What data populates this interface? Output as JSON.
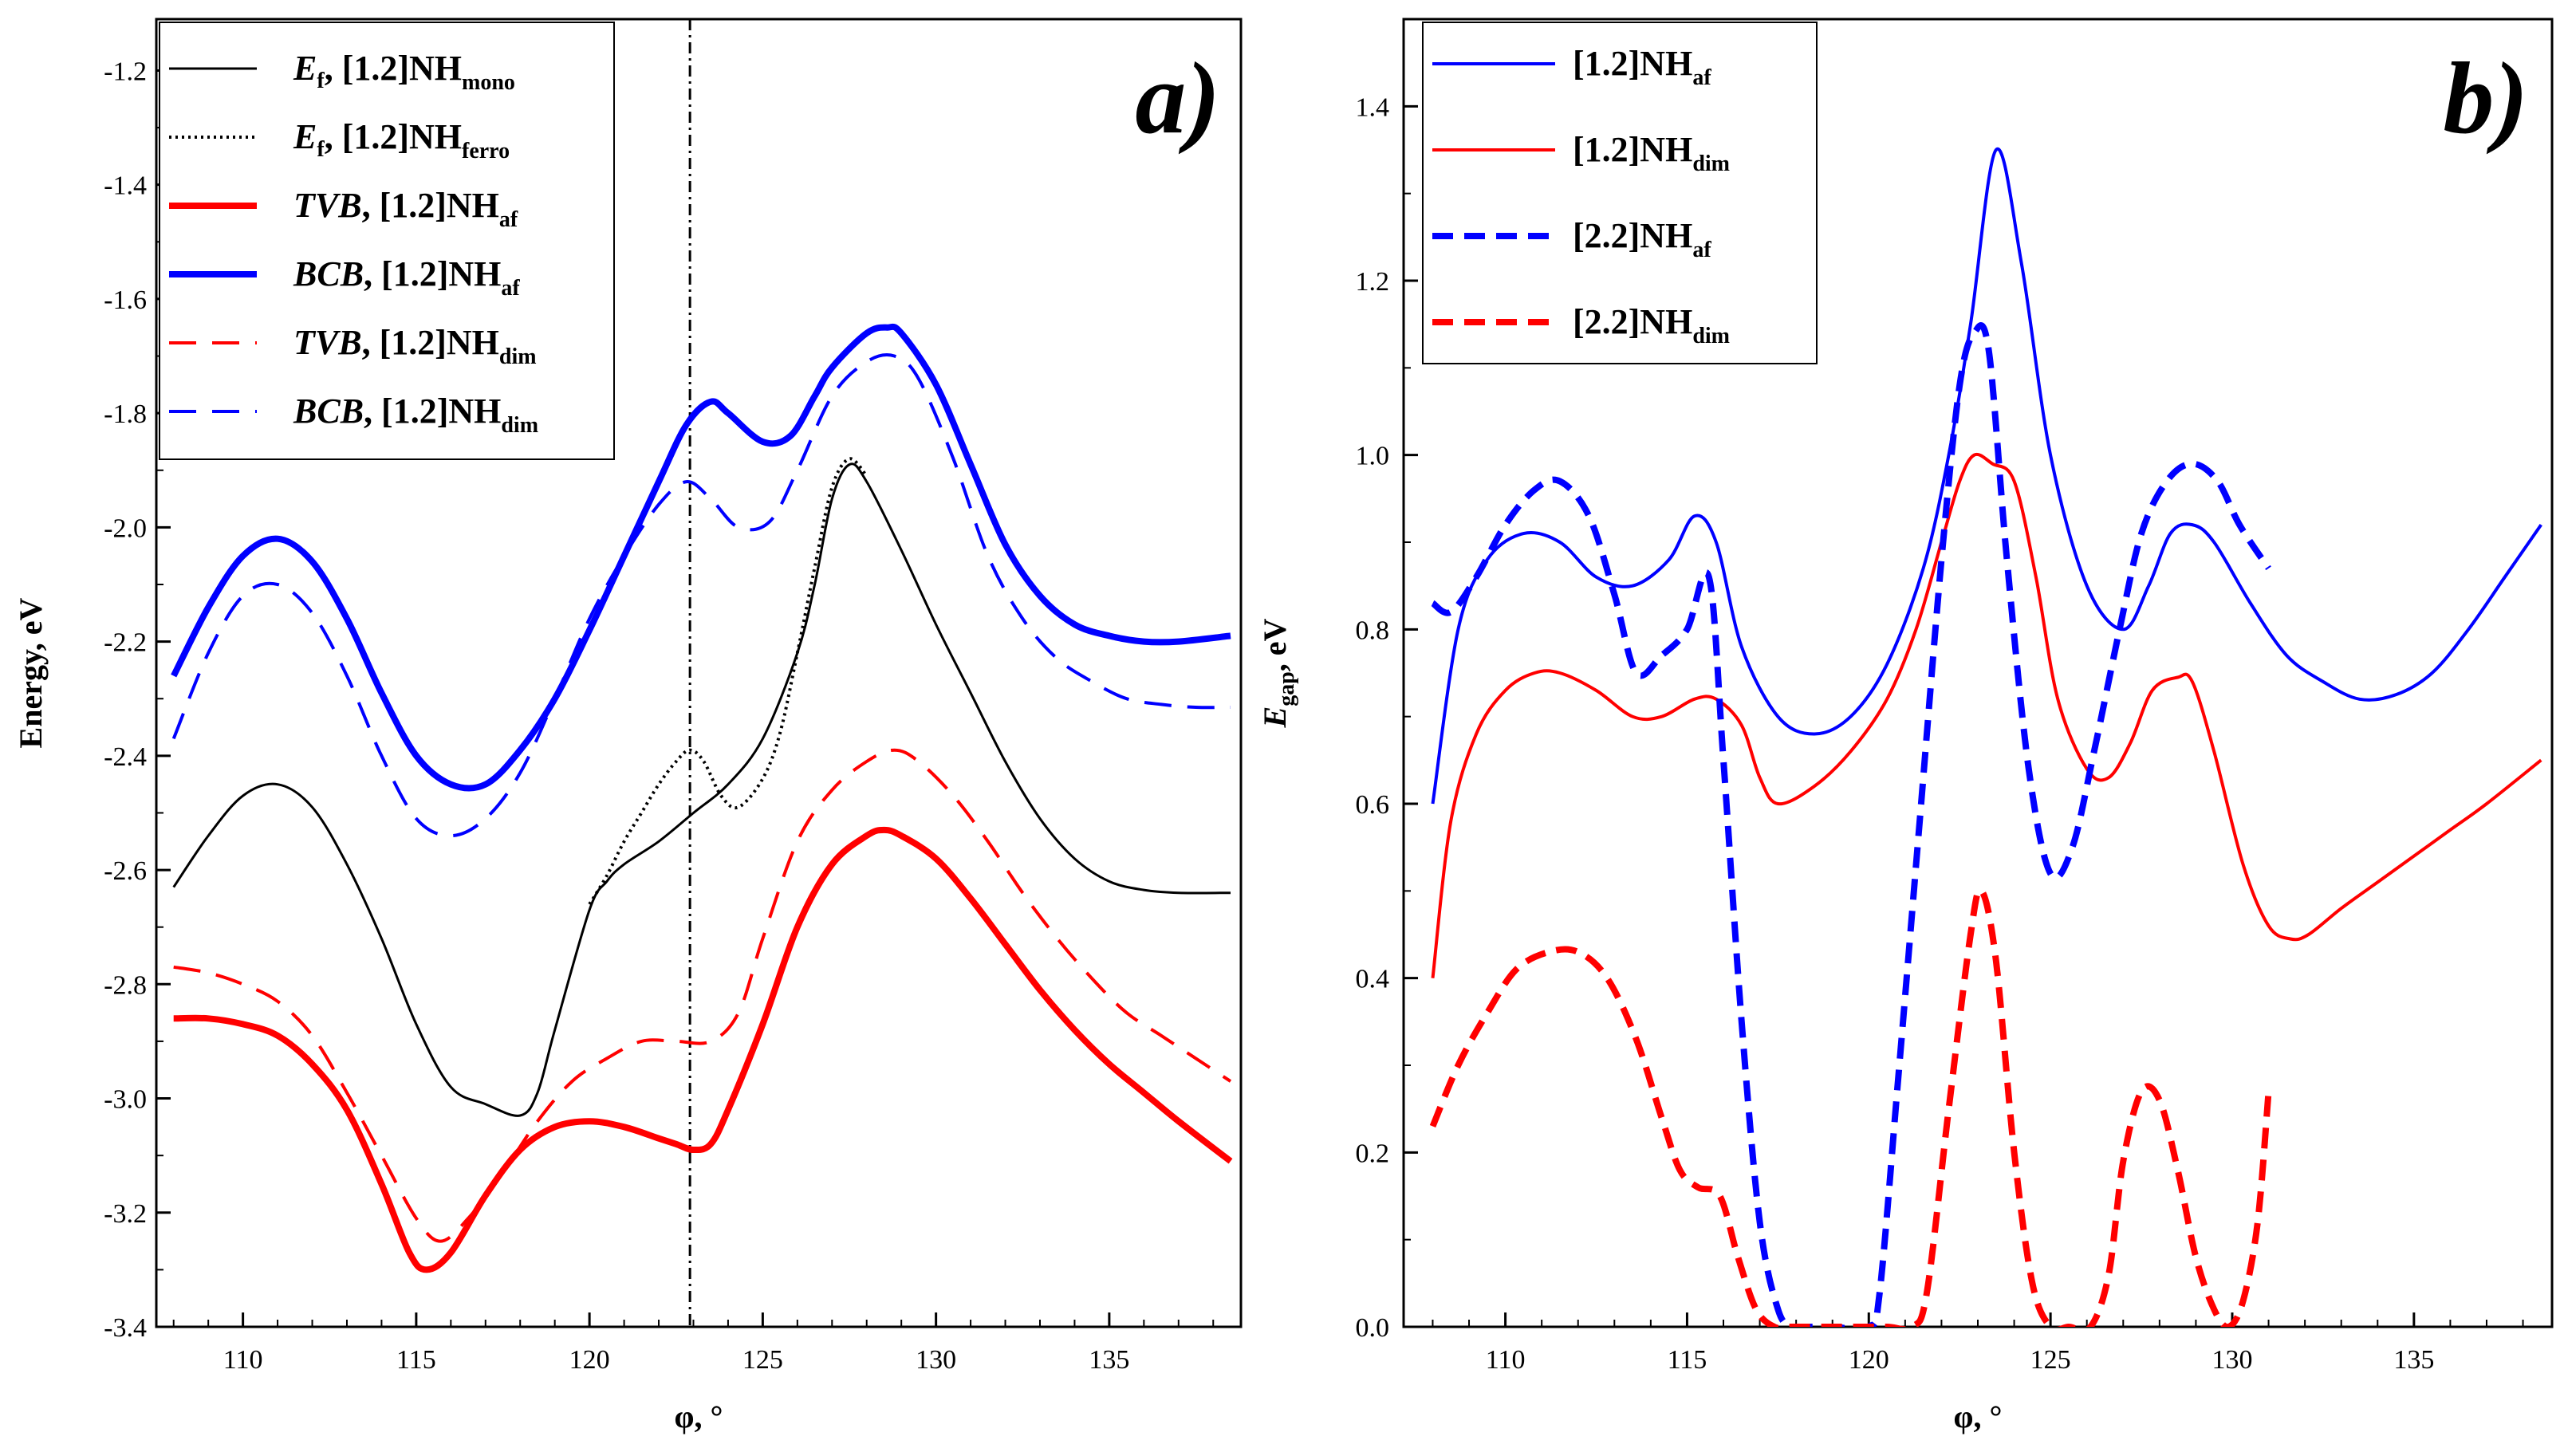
{
  "chart_data": [
    {
      "type": "line",
      "panel_label": "a)",
      "xlabel": "φ, °",
      "ylabel": "Energy, eV",
      "xlim": [
        107.5,
        138.8
      ],
      "ylim": [
        -3.4,
        -1.11
      ],
      "xticks": [
        110,
        115,
        120,
        125,
        130,
        135
      ],
      "yticks": [
        -3.4,
        -3.2,
        -3.0,
        -2.8,
        -2.6,
        -2.4,
        -2.2,
        -2.0,
        -1.8,
        -1.6,
        -1.4,
        -1.2
      ],
      "vline_x": 122.9,
      "series": [
        {
          "name": "Ef, [1.2]NHmono",
          "legend": {
            "label": "E",
            "sub1": "f",
            "rest": ", [1.2]NH",
            "sub2": "mono"
          },
          "color": "#000000",
          "style": "solid",
          "width": 3,
          "italic": true,
          "x": [
            108,
            109,
            110,
            111,
            112,
            113,
            114,
            115,
            116,
            117,
            118,
            118.5,
            119,
            120,
            120.5,
            121,
            122,
            123,
            124,
            125,
            126,
            126.5,
            127,
            127.5,
            128,
            129,
            130,
            131,
            132,
            133,
            134,
            135,
            136,
            137,
            138.5
          ],
          "y": [
            -2.63,
            -2.54,
            -2.47,
            -2.45,
            -2.49,
            -2.59,
            -2.72,
            -2.87,
            -2.98,
            -3.01,
            -3.03,
            -2.99,
            -2.88,
            -2.67,
            -2.62,
            -2.59,
            -2.55,
            -2.5,
            -2.45,
            -2.37,
            -2.22,
            -2.1,
            -1.95,
            -1.89,
            -1.92,
            -2.04,
            -2.17,
            -2.29,
            -2.41,
            -2.51,
            -2.58,
            -2.62,
            -2.635,
            -2.64,
            -2.64
          ]
        },
        {
          "name": "Ef, [1.2]NHferro",
          "legend": {
            "label": "E",
            "sub1": "f",
            "rest": ", [1.2]NH",
            "sub2": "ferro"
          },
          "color": "#000000",
          "style": "dotted",
          "width": 4,
          "italic": true,
          "x": [
            120,
            120.5,
            121,
            121.5,
            122,
            122.5,
            122.9,
            123.3,
            123.8,
            124.3,
            125,
            125.5,
            126,
            126.5,
            127,
            127.5,
            128
          ],
          "y": [
            -2.66,
            -2.61,
            -2.55,
            -2.5,
            -2.45,
            -2.41,
            -2.39,
            -2.41,
            -2.47,
            -2.49,
            -2.44,
            -2.36,
            -2.22,
            -2.07,
            -1.93,
            -1.88,
            -1.91
          ]
        },
        {
          "name": "TVB, [1.2]NHaf",
          "legend": {
            "label": "TVB",
            "sub1": "",
            "rest": ", [1.2]NH",
            "sub2": "af"
          },
          "color": "#ff0000",
          "style": "solid",
          "width": 8,
          "italic": true,
          "x": [
            108,
            109,
            110,
            111,
            112,
            113,
            114,
            114.8,
            115.3,
            116,
            117,
            118,
            119,
            120,
            121,
            122,
            122.5,
            123,
            123.5,
            124,
            125,
            126,
            127,
            128,
            128.5,
            129,
            130,
            131,
            132,
            133,
            134,
            135,
            136,
            137,
            138.5
          ],
          "y": [
            -2.86,
            -2.86,
            -2.87,
            -2.89,
            -2.94,
            -3.02,
            -3.15,
            -3.27,
            -3.3,
            -3.27,
            -3.17,
            -3.09,
            -3.05,
            -3.04,
            -3.05,
            -3.07,
            -3.08,
            -3.09,
            -3.08,
            -3.02,
            -2.87,
            -2.7,
            -2.59,
            -2.54,
            -2.53,
            -2.54,
            -2.58,
            -2.65,
            -2.73,
            -2.81,
            -2.88,
            -2.94,
            -2.99,
            -3.04,
            -3.11
          ]
        },
        {
          "name": "BCB, [1.2]NHaf",
          "legend": {
            "label": "BCB",
            "sub1": "",
            "rest": ", [1.2]NH",
            "sub2": "af"
          },
          "color": "#0000ff",
          "style": "solid",
          "width": 8,
          "italic": true,
          "x": [
            108,
            109,
            110,
            111,
            112,
            113,
            114,
            115,
            116,
            117,
            118,
            119,
            120,
            121,
            122,
            122.8,
            123.5,
            124,
            125,
            125.8,
            126.5,
            127,
            128,
            128.6,
            129,
            130,
            131,
            132,
            133,
            134,
            135,
            136,
            137,
            138.5
          ],
          "y": [
            -2.26,
            -2.14,
            -2.05,
            -2.02,
            -2.06,
            -2.16,
            -2.29,
            -2.4,
            -2.45,
            -2.45,
            -2.39,
            -2.3,
            -2.18,
            -2.05,
            -1.92,
            -1.82,
            -1.78,
            -1.8,
            -1.85,
            -1.84,
            -1.77,
            -1.72,
            -1.66,
            -1.65,
            -1.66,
            -1.75,
            -1.89,
            -2.03,
            -2.12,
            -2.17,
            -2.19,
            -2.2,
            -2.2,
            -2.19
          ]
        },
        {
          "name": "TVB, [1.2]NHdim",
          "legend": {
            "label": "TVB",
            "sub1": "",
            "rest": ", [1.2]NH",
            "sub2": "dim"
          },
          "color": "#ff0000",
          "style": "dashed",
          "width": 4,
          "italic": true,
          "x": [
            108,
            109,
            110,
            111,
            112,
            113,
            114,
            115,
            115.7,
            116.5,
            117.5,
            118.5,
            119.5,
            120.5,
            121.5,
            122.5,
            123.5,
            124.3,
            125,
            126,
            127,
            128,
            128.8,
            129.5,
            130.5,
            131.5,
            132.5,
            133.5,
            134.5,
            135.5,
            136.5,
            137.5,
            138.5
          ],
          "y": [
            -2.77,
            -2.78,
            -2.8,
            -2.83,
            -2.89,
            -2.99,
            -3.1,
            -3.21,
            -3.25,
            -3.21,
            -3.13,
            -3.04,
            -2.97,
            -2.93,
            -2.9,
            -2.9,
            -2.9,
            -2.85,
            -2.72,
            -2.55,
            -2.46,
            -2.41,
            -2.39,
            -2.41,
            -2.47,
            -2.55,
            -2.64,
            -2.72,
            -2.79,
            -2.85,
            -2.89,
            -2.93,
            -2.97
          ]
        },
        {
          "name": "BCB, [1.2]NHdim",
          "legend": {
            "label": "BCB",
            "sub1": "",
            "rest": ", [1.2]NH",
            "sub2": "dim"
          },
          "color": "#0000ff",
          "style": "dashed",
          "width": 4,
          "italic": true,
          "x": [
            108,
            109,
            110,
            111,
            112,
            113,
            114,
            115,
            116,
            117,
            118,
            119,
            120,
            121,
            122,
            122.8,
            123.5,
            124.3,
            125.2,
            126,
            127,
            128,
            128.8,
            129.5,
            130.5,
            131.5,
            132.5,
            133.5,
            134.5,
            135.5,
            136.5,
            137.5,
            138.5
          ],
          "y": [
            -2.37,
            -2.22,
            -2.12,
            -2.1,
            -2.15,
            -2.26,
            -2.4,
            -2.51,
            -2.54,
            -2.51,
            -2.43,
            -2.3,
            -2.16,
            -2.05,
            -1.96,
            -1.92,
            -1.95,
            -2.0,
            -1.99,
            -1.9,
            -1.77,
            -1.71,
            -1.7,
            -1.74,
            -1.88,
            -2.05,
            -2.16,
            -2.23,
            -2.27,
            -2.3,
            -2.31,
            -2.315,
            -2.315
          ]
        }
      ]
    },
    {
      "type": "line",
      "panel_label": "b)",
      "xlabel": "φ, °",
      "ylabel": {
        "main": "E",
        "sub": "gap",
        "rest": ", eV"
      },
      "xlim": [
        107.2,
        138.8
      ],
      "ylim": [
        0,
        1.5
      ],
      "xticks": [
        110,
        115,
        120,
        125,
        130,
        135
      ],
      "yticks": [
        0.0,
        0.2,
        0.4,
        0.6,
        0.8,
        1.0,
        1.2,
        1.4
      ],
      "series": [
        {
          "name": "[1.2]NHaf",
          "legend": {
            "label": "",
            "sub1": "",
            "rest": "[1.2]NH",
            "sub2": "af"
          },
          "color": "#0000ff",
          "style": "solid",
          "width": 4,
          "italic": false,
          "x": [
            108,
            108.7,
            109.5,
            110.5,
            111.5,
            112.5,
            113.5,
            114.5,
            115.2,
            115.8,
            116.5,
            117.5,
            118.5,
            119.5,
            120.5,
            121.5,
            122.2,
            122.8,
            123.5,
            124.2,
            125,
            126,
            127,
            127.7,
            128.3,
            128.9,
            129.5,
            130.5,
            131.5,
            132.5,
            133.5,
            134.5,
            135.5,
            136.5,
            137.5,
            138.5
          ],
          "y": [
            0.6,
            0.8,
            0.88,
            0.91,
            0.9,
            0.86,
            0.85,
            0.88,
            0.93,
            0.9,
            0.78,
            0.7,
            0.68,
            0.7,
            0.76,
            0.87,
            1.0,
            1.15,
            1.35,
            1.22,
            1.0,
            0.85,
            0.8,
            0.85,
            0.91,
            0.92,
            0.9,
            0.83,
            0.77,
            0.74,
            0.72,
            0.725,
            0.75,
            0.8,
            0.86,
            0.92
          ]
        },
        {
          "name": "[1.2]NHdim",
          "legend": {
            "label": "",
            "sub1": "",
            "rest": "[1.2]NH",
            "sub2": "dim"
          },
          "color": "#ff0000",
          "style": "solid",
          "width": 4,
          "italic": false,
          "x": [
            108,
            108.5,
            109.2,
            110,
            110.8,
            111.5,
            112.5,
            113.5,
            114.3,
            115.2,
            115.8,
            116.5,
            117,
            117.5,
            118.5,
            119.5,
            120.5,
            121.3,
            122,
            122.5,
            122.9,
            123.4,
            124,
            124.6,
            125.2,
            126,
            126.6,
            127.2,
            127.8,
            128.5,
            128.9,
            129.5,
            130.3,
            131,
            131.6,
            132.1,
            133,
            134,
            135,
            136,
            137,
            138.5
          ],
          "y": [
            0.4,
            0.58,
            0.68,
            0.73,
            0.75,
            0.75,
            0.73,
            0.7,
            0.7,
            0.72,
            0.72,
            0.69,
            0.63,
            0.6,
            0.62,
            0.66,
            0.72,
            0.8,
            0.9,
            0.97,
            1.0,
            0.99,
            0.97,
            0.86,
            0.72,
            0.64,
            0.63,
            0.67,
            0.73,
            0.745,
            0.74,
            0.66,
            0.53,
            0.46,
            0.445,
            0.45,
            0.48,
            0.51,
            0.54,
            0.57,
            0.6,
            0.65
          ]
        },
        {
          "name": "[2.2]NHaf",
          "legend": {
            "label": "",
            "sub1": "",
            "rest": "[2.2]NH",
            "sub2": "af"
          },
          "color": "#0000ff",
          "style": "dashed",
          "width": 8,
          "italic": false,
          "x": [
            108,
            108.5,
            109.2,
            110,
            110.8,
            111.5,
            112.3,
            113,
            113.6,
            114.3,
            115,
            115.6,
            116,
            116.5,
            117,
            117.5,
            117.9,
            118.3,
            119,
            120,
            120.3,
            120.8,
            121.4,
            122,
            122.5,
            122.9,
            123.3,
            123.8,
            124.4,
            125,
            125.6,
            126.2,
            126.9,
            127.5,
            128.2,
            128.9,
            129.6,
            130.2,
            131
          ],
          "y": [
            0.83,
            0.82,
            0.86,
            0.92,
            0.96,
            0.97,
            0.93,
            0.84,
            0.75,
            0.77,
            0.8,
            0.86,
            0.65,
            0.35,
            0.12,
            0.02,
            0.0,
            0.0,
            0.0,
            0.0,
            0.04,
            0.28,
            0.58,
            0.88,
            1.08,
            1.14,
            1.12,
            0.88,
            0.64,
            0.52,
            0.55,
            0.66,
            0.8,
            0.91,
            0.97,
            0.99,
            0.97,
            0.92,
            0.87
          ]
        },
        {
          "name": "[2.2]NHdim",
          "legend": {
            "label": "",
            "sub1": "",
            "rest": "[2.2]NH",
            "sub2": "dim"
          },
          "color": "#ff0000",
          "style": "dashed",
          "width": 8,
          "italic": false,
          "x": [
            108,
            108.7,
            109.5,
            110.3,
            111.2,
            112,
            112.8,
            113.6,
            114.3,
            114.8,
            115.3,
            115.9,
            116.4,
            116.9,
            117.4,
            117.8,
            118.5,
            119.5,
            120.5,
            121.2,
            121.6,
            122.2,
            122.8,
            123.1,
            123.5,
            124,
            124.5,
            125,
            125.5,
            126.1,
            126.6,
            127,
            127.5,
            128,
            128.5,
            129,
            129.5,
            129.9,
            130.3,
            130.7,
            131
          ],
          "y": [
            0.23,
            0.3,
            0.36,
            0.41,
            0.43,
            0.43,
            0.4,
            0.33,
            0.24,
            0.18,
            0.16,
            0.15,
            0.08,
            0.02,
            0.0,
            0.0,
            0.0,
            0.0,
            0.0,
            0.0,
            0.04,
            0.25,
            0.45,
            0.5,
            0.42,
            0.2,
            0.05,
            0.0,
            0.0,
            0.0,
            0.06,
            0.19,
            0.27,
            0.26,
            0.18,
            0.08,
            0.02,
            0.0,
            0.03,
            0.12,
            0.27
          ]
        }
      ]
    }
  ]
}
